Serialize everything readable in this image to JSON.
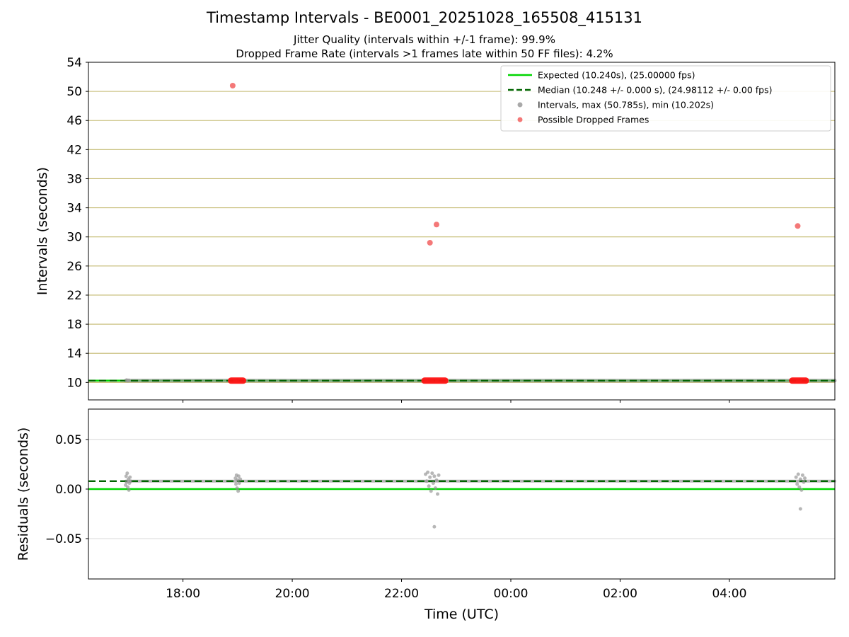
{
  "figure": {
    "title": "Timestamp Intervals - BE0001_20251028_165508_415131",
    "subtitle_jitter": "Jitter Quality (intervals within +/-1 frame): 99.9%",
    "subtitle_dropped": "Dropped Frame Rate (intervals >1 frames late within 50 FF files): 4.2%"
  },
  "chart_data": [
    {
      "type": "scatter",
      "name": "intervals",
      "ylabel": "Intervals (seconds)",
      "xlabel": "",
      "xlim": [
        16.27,
        29.93
      ],
      "ylim": [
        7.6,
        54
      ],
      "yticks": [
        10,
        14,
        18,
        22,
        26,
        30,
        34,
        38,
        42,
        46,
        50,
        54
      ],
      "ytick_labels": [
        "10",
        "14",
        "18",
        "22",
        "26",
        "30",
        "34",
        "38",
        "42",
        "46",
        "50",
        "54"
      ],
      "xticks": [
        18,
        20,
        22,
        24,
        26,
        28
      ],
      "xtick_labels": [
        "18:00",
        "20:00",
        "22:00",
        "00:00",
        "02:00",
        "04:00"
      ],
      "show_xtick_labels": false,
      "grid": true,
      "grid_color": "#c3b96f",
      "ref_lines": [
        {
          "label": "Expected (10.240s), (25.00000 fps)",
          "y": 10.24,
          "color": "#00d600",
          "style": "solid",
          "width": 2.6
        },
        {
          "label": "Median (10.248 +/- 0.000 s), (24.98112 +/- 0.00 fps)",
          "y": 10.248,
          "color": "#006400",
          "style": "dashed",
          "width": 2.4
        }
      ],
      "series": [
        {
          "name": "Intervals, max (50.785s), min (10.202s)",
          "color": "#9a9a9a",
          "marker_r": 2.5,
          "opacity": 0.7,
          "segments": [
            {
              "x0": 16.95,
              "x1": 29.93,
              "y": 10.245,
              "w": 5
            }
          ],
          "points": [
            [
              16.97,
              10.33
            ],
            [
              16.99,
              10.21
            ],
            [
              17.01,
              10.3
            ],
            [
              19.0,
              10.32
            ],
            [
              22.5,
              10.34
            ],
            [
              22.56,
              10.2
            ],
            [
              29.3,
              10.32
            ]
          ]
        },
        {
          "name": "Possible Dropped Frames",
          "color": "#f26060",
          "segment_color": "#ff1212",
          "marker_r": 4,
          "opacity": 0.85,
          "segments": [
            {
              "x0": 18.88,
              "x1": 19.1,
              "y": 10.245,
              "w": 9
            },
            {
              "x0": 22.42,
              "x1": 22.8,
              "y": 10.245,
              "w": 9
            },
            {
              "x0": 29.15,
              "x1": 29.4,
              "y": 10.245,
              "w": 9
            }
          ],
          "points": [
            [
              18.91,
              50.79
            ],
            [
              22.52,
              29.2
            ],
            [
              22.64,
              31.7
            ],
            [
              29.25,
              31.5
            ]
          ]
        }
      ],
      "legend": {
        "position": "upper right",
        "items": [
          {
            "marker": "line",
            "style": "solid",
            "color": "#00d600",
            "label": "Expected (10.240s), (25.00000 fps)"
          },
          {
            "marker": "line",
            "style": "dashed",
            "color": "#006400",
            "label": "Median (10.248 +/- 0.000 s), (24.98112 +/- 0.00 fps)"
          },
          {
            "marker": "dot",
            "color": "#9a9a9a",
            "label": "Intervals, max (50.785s), min (10.202s)"
          },
          {
            "marker": "dot",
            "color": "#f26060",
            "label": "Possible Dropped Frames"
          }
        ]
      }
    },
    {
      "type": "scatter",
      "name": "residuals",
      "ylabel": "Residuals (seconds)",
      "xlabel": "Time (UTC)",
      "xlim": [
        16.27,
        29.93
      ],
      "ylim": [
        -0.0907,
        0.0807
      ],
      "yticks": [
        -0.05,
        0.0,
        0.05
      ],
      "ytick_labels": [
        "−0.05",
        "0.00",
        "0.05"
      ],
      "xticks": [
        18,
        20,
        22,
        24,
        26,
        28
      ],
      "xtick_labels": [
        "18:00",
        "20:00",
        "22:00",
        "00:00",
        "02:00",
        "04:00"
      ],
      "show_xtick_labels": true,
      "grid": true,
      "grid_color": "#d9d9d9",
      "ref_lines": [
        {
          "label": "expected-residual",
          "y": 0.0,
          "color": "#00d600",
          "style": "solid",
          "width": 2.6
        },
        {
          "label": "median-residual",
          "y": 0.008,
          "color": "#006400",
          "style": "dashed",
          "width": 2.4
        }
      ],
      "series": [
        {
          "name": "residual-intervals",
          "color": "#909090",
          "marker_r": 2.5,
          "opacity": 0.65,
          "segments": [
            {
              "x0": 16.95,
              "x1": 29.93,
              "y": 0.008,
              "w": 4
            }
          ],
          "points": [
            [
              16.95,
              0.004
            ],
            [
              16.96,
              0.013
            ],
            [
              16.97,
              0.007
            ],
            [
              16.98,
              0.016
            ],
            [
              16.99,
              0.002
            ],
            [
              17.0,
              0.01
            ],
            [
              17.01,
              -0.001
            ],
            [
              17.02,
              0.006
            ],
            [
              17.03,
              0.012
            ],
            [
              17.04,
              0.008
            ],
            [
              18.96,
              0.011
            ],
            [
              18.97,
              0.005
            ],
            [
              18.98,
              0.014
            ],
            [
              18.99,
              0.001
            ],
            [
              19.0,
              0.009
            ],
            [
              19.01,
              -0.002
            ],
            [
              19.02,
              0.013
            ],
            [
              19.03,
              0.006
            ],
            [
              19.05,
              0.01
            ],
            [
              22.44,
              0.015
            ],
            [
              22.46,
              0.008
            ],
            [
              22.48,
              0.017
            ],
            [
              22.5,
              0.003
            ],
            [
              22.52,
              0.012
            ],
            [
              22.54,
              -0.002
            ],
            [
              22.56,
              0.016
            ],
            [
              22.58,
              0.006
            ],
            [
              22.6,
              0.013
            ],
            [
              22.62,
              0.001
            ],
            [
              22.64,
              0.009
            ],
            [
              22.66,
              -0.005
            ],
            [
              22.68,
              0.014
            ],
            [
              22.6,
              -0.038
            ],
            [
              29.22,
              0.012
            ],
            [
              29.24,
              0.005
            ],
            [
              29.26,
              0.015
            ],
            [
              29.28,
              0.002
            ],
            [
              29.3,
              0.01
            ],
            [
              29.32,
              -0.001
            ],
            [
              29.34,
              0.014
            ],
            [
              29.36,
              0.007
            ],
            [
              29.38,
              0.011
            ],
            [
              29.3,
              -0.02
            ]
          ]
        }
      ]
    }
  ]
}
